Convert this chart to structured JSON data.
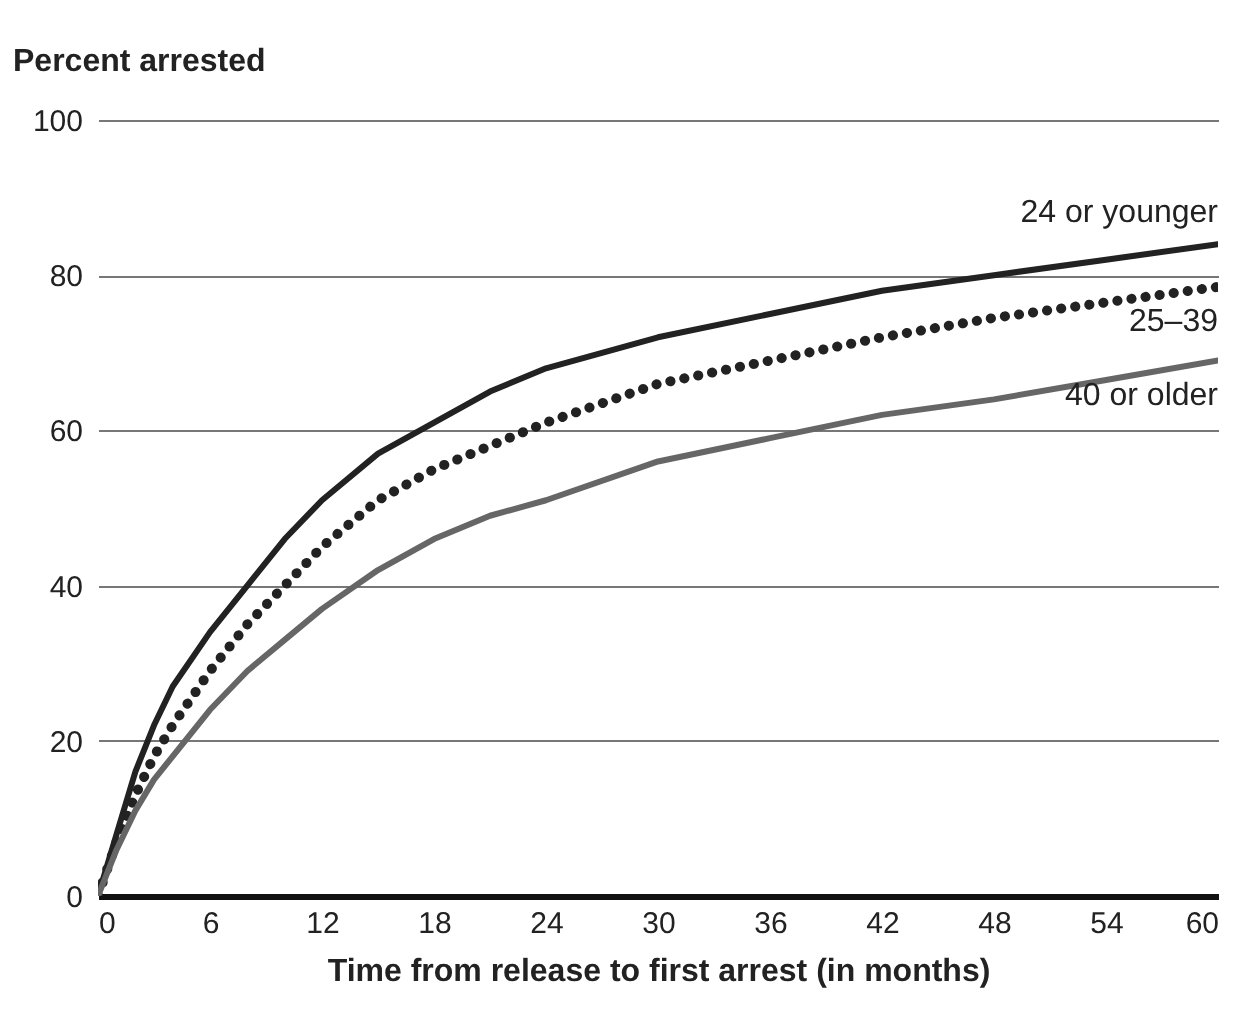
{
  "chart_data": {
    "type": "line",
    "ylabel": "Percent arrested",
    "xlabel": "Time from release to first arrest (in months)",
    "x": [
      0,
      1,
      2,
      3,
      4,
      6,
      8,
      10,
      12,
      15,
      18,
      21,
      24,
      30,
      36,
      42,
      48,
      54,
      60
    ],
    "series": [
      {
        "name": "24 or younger",
        "color": "#222222",
        "line_style": "solid",
        "values": [
          0,
          8,
          16,
          22,
          27,
          34,
          40,
          46,
          51,
          57,
          61,
          65,
          68,
          72,
          75,
          78,
          80,
          82,
          84
        ]
      },
      {
        "name": "25–39",
        "color": "#222222",
        "line_style": "dotted",
        "values": [
          0,
          7,
          13,
          18,
          22,
          29,
          35,
          40,
          45,
          51,
          55,
          58,
          61,
          66,
          69,
          72,
          74.5,
          76.5,
          78.5
        ]
      },
      {
        "name": "40 or older",
        "color": "#666666",
        "line_style": "solid",
        "values": [
          0,
          6,
          11,
          15,
          18,
          24,
          29,
          33,
          37,
          42,
          46,
          49,
          51,
          56,
          59,
          62,
          64,
          66.5,
          69
        ]
      }
    ],
    "xlim": [
      0,
      60
    ],
    "xticks": [
      0,
      6,
      12,
      18,
      24,
      30,
      36,
      42,
      48,
      54,
      60
    ],
    "ylim": [
      0,
      100
    ],
    "yticks": [
      0,
      20,
      40,
      60,
      80,
      100
    ],
    "grid": "y",
    "marker": "none"
  }
}
